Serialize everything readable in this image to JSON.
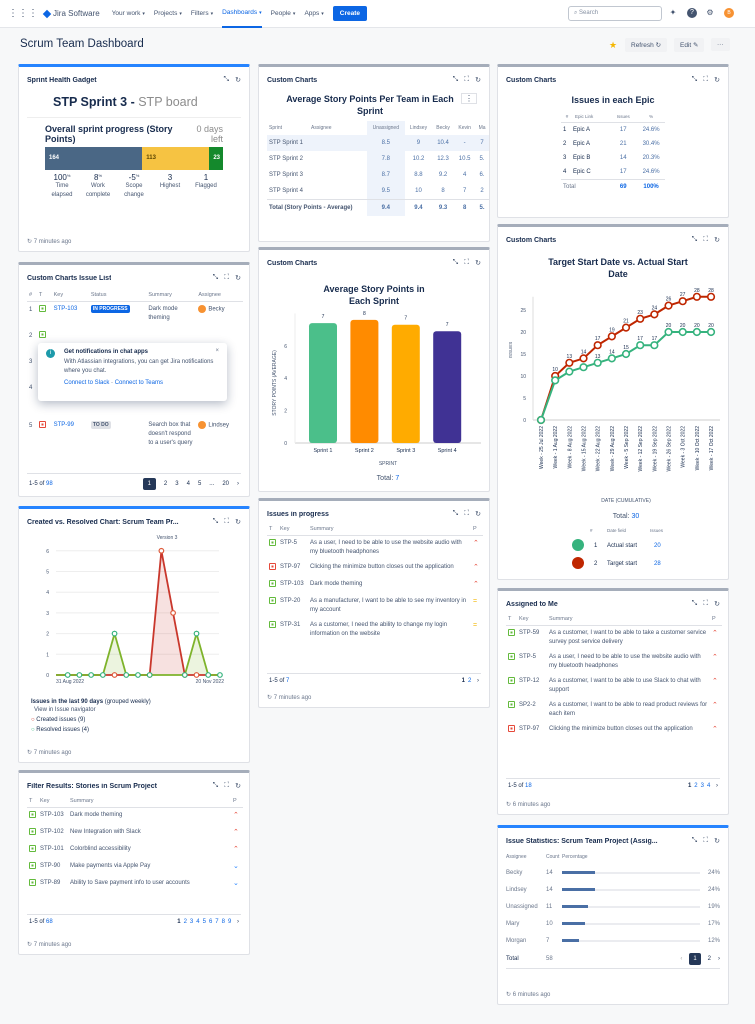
{
  "topbar": {
    "app_name": "Jira Software",
    "nav": [
      "Your work",
      "Projects",
      "Filters",
      "Dashboards",
      "People",
      "Apps"
    ],
    "active_nav": "Dashboards",
    "create_label": "Create",
    "search_placeholder": "Search"
  },
  "header": {
    "title": "Scrum Team Dashboard",
    "refresh_label": "Refresh",
    "edit_label": "Edit",
    "more_label": "···"
  },
  "colors": {
    "primary": "#0c66e4",
    "created": "#c9372c",
    "resolved": "#7eb32b",
    "actual": "#36b37e",
    "target": "#bf2600"
  },
  "sprint_health": {
    "title": "Sprint Health Gadget",
    "sprint": "STP Sprint 3 -",
    "board": "STP board",
    "progress_title": "Overall sprint progress (Story Points)",
    "days_left": "0 days left",
    "segments": [
      {
        "value": 164,
        "color": "#4a6785"
      },
      {
        "value": 113,
        "color": "#f6c342"
      },
      {
        "value": 23,
        "color": "#14892c"
      }
    ],
    "stats": [
      {
        "value": "100",
        "unit": "%",
        "label": "Time elapsed"
      },
      {
        "value": "8",
        "unit": "%",
        "label": "Work complete"
      },
      {
        "value": "-5",
        "unit": "%",
        "label": "Scope change"
      },
      {
        "value": "3",
        "unit": "",
        "label": "Highest"
      },
      {
        "value": "1",
        "unit": "",
        "label": "Flagged"
      }
    ],
    "updated": "7 minutes ago"
  },
  "issue_list": {
    "title": "Custom Charts Issue List",
    "columns": [
      "#",
      "T",
      "Key",
      "Status",
      "Summary",
      "Assignee"
    ],
    "rows": [
      {
        "n": "1",
        "key": "STP-103",
        "status": "IN PROGRESS",
        "summary": "Dark mode theming",
        "assignee": "Becky"
      },
      {
        "n": "2",
        "key": "",
        "status": "",
        "summary": "",
        "assignee": ""
      },
      {
        "n": "3",
        "key": "",
        "status": "",
        "summary": "",
        "assignee": ""
      },
      {
        "n": "4",
        "key": "",
        "status": "",
        "summary": "page does not load",
        "assignee": ""
      },
      {
        "n": "5",
        "key": "STP-99",
        "status": "TO DO",
        "summary": "Search box that doesn't respond to a user's query",
        "assignee": "Lindsey"
      }
    ],
    "range": "1-5 of",
    "total": "98",
    "pages": [
      "1",
      "2",
      "3",
      "4",
      "5",
      "...",
      "20"
    ],
    "popup": {
      "title": "Get notifications in chat apps",
      "body": "With Atlassian integrations, you can get Jira notifications where you chat.",
      "link1": "Connect to Slack",
      "sep": "·",
      "link2": "Connect to Teams"
    }
  },
  "created_resolved": {
    "title": "Created vs. Resolved Chart: Scrum Team Pr...",
    "updated": "7 minutes ago",
    "summary_bold": "Issues in the last 90 days",
    "summary_rest": "(grouped weekly)",
    "view_link": "View in Issue navigator",
    "legend_created": "Created issues (9)",
    "legend_resolved": "Resolved issues (4)"
  },
  "filter_results": {
    "title": "Filter Results: Stories in Scrum Project",
    "columns": [
      "T",
      "Key",
      "Summary",
      "P"
    ],
    "rows": [
      {
        "key": "STP-103",
        "summary": "Dark mode theming",
        "p": "high"
      },
      {
        "key": "STP-102",
        "summary": "New Integration with Slack",
        "p": "high"
      },
      {
        "key": "STP-101",
        "summary": "Colorblind accessibility",
        "p": "high"
      },
      {
        "key": "STP-90",
        "summary": "Make payments via Apple Pay",
        "p": "low"
      },
      {
        "key": "STP-89",
        "summary": "Ability to Save payment info to user accounts",
        "p": "low"
      }
    ],
    "range": "1-5 of",
    "total": "68",
    "pages": [
      "1",
      "2",
      "3",
      "4",
      "5",
      "6",
      "7",
      "8",
      "9"
    ],
    "updated": "7 minutes ago"
  },
  "team_table": {
    "title": "Custom Charts",
    "chart_title": "Average Story Points Per Team in Each Sprint",
    "columns": [
      "Sprint",
      "Assignee",
      "Unassigned",
      "Lindsey",
      "Becky",
      "Kevin",
      "Ma"
    ],
    "rows": [
      {
        "label": "STP Sprint 1",
        "values": [
          "8.5",
          "9",
          "10.4",
          "-",
          "7"
        ]
      },
      {
        "label": "STP Sprint 2",
        "values": [
          "7.8",
          "10.2",
          "12.3",
          "10.5",
          "5."
        ]
      },
      {
        "label": "STP Sprint 3",
        "values": [
          "8.7",
          "8.8",
          "9.2",
          "4",
          "6."
        ]
      },
      {
        "label": "STP Sprint 4",
        "values": [
          "9.5",
          "10",
          "8",
          "7",
          "2"
        ]
      },
      {
        "label": "Total (Story Points - Average)",
        "values": [
          "9.4",
          "9.4",
          "9.3",
          "8",
          "5."
        ]
      }
    ]
  },
  "issues_progress": {
    "title": "Issues in progress",
    "columns": [
      "T",
      "Key",
      "Summary",
      "P"
    ],
    "rows": [
      {
        "key": "STP-5",
        "type": "story",
        "summary": "As a user, I need to be able to use the website audio with my bluetooth headphones",
        "p": "high"
      },
      {
        "key": "STP-97",
        "type": "bug",
        "summary": "Clicking the minimize button closes out the application",
        "p": "high"
      },
      {
        "key": "STP-103",
        "type": "story",
        "summary": "Dark mode theming",
        "p": "high"
      },
      {
        "key": "STP-20",
        "type": "story",
        "summary": "As a manufacturer, I want to be able to see my inventory in my account",
        "p": "med"
      },
      {
        "key": "STP-31",
        "type": "story",
        "summary": "As a customer, I need the ability to change my login information on the website",
        "p": "med"
      }
    ],
    "range": "1-5 of",
    "total": "7",
    "pages": [
      "1",
      "2"
    ],
    "updated": "7 minutes ago"
  },
  "epic_table": {
    "title": "Custom Charts",
    "chart_title": "Issues in each Epic",
    "columns": [
      "#",
      "Epic Link",
      "Issues",
      "%"
    ],
    "rows": [
      {
        "n": "1",
        "epic": "Epic A",
        "issues": "17",
        "pct": "24.6%"
      },
      {
        "n": "2",
        "epic": "Epic A",
        "issues": "21",
        "pct": "30.4%"
      },
      {
        "n": "3",
        "epic": "Epic B",
        "issues": "14",
        "pct": "20.3%"
      },
      {
        "n": "4",
        "epic": "Epic C",
        "issues": "17",
        "pct": "24.6%"
      }
    ],
    "total_label": "Total",
    "total_issues": "69",
    "total_pct": "100%"
  },
  "assigned": {
    "title": "Assigned to Me",
    "columns": [
      "T",
      "Key",
      "Summary",
      "P"
    ],
    "rows": [
      {
        "key": "STP-59",
        "type": "story",
        "summary": "As a customer, I want to be able to take a customer service survey post service delivery",
        "p": "high"
      },
      {
        "key": "STP-5",
        "type": "story",
        "summary": "As a user, I need to be able to use the website audio with my bluetooth headphones",
        "p": "high"
      },
      {
        "key": "STP-12",
        "type": "story",
        "summary": "As a customer, I want to be able to use Slack to chat with support",
        "p": "high"
      },
      {
        "key": "SP2-2",
        "type": "story",
        "summary": "As a customer, I want to be able to read product reviews for each item",
        "p": "high"
      },
      {
        "key": "STP-97",
        "type": "bug",
        "summary": "Clicking the minimize button closes out the application",
        "p": "high"
      }
    ],
    "range": "1-5 of",
    "total": "18",
    "pages": [
      "1",
      "2",
      "3",
      "4"
    ],
    "updated": "6 minutes ago"
  },
  "statistics": {
    "title": "Issue Statistics: Scrum Team Project (Assig...",
    "columns": [
      "Assignee",
      "Count",
      "Percentage"
    ],
    "rows": [
      {
        "name": "Becky",
        "count": "14",
        "pct": "24%",
        "value": 24
      },
      {
        "name": "Lindsey",
        "count": "14",
        "pct": "24%",
        "value": 24
      },
      {
        "name": "Unassigned",
        "count": "11",
        "pct": "19%",
        "value": 19
      },
      {
        "name": "Mary",
        "count": "10",
        "pct": "17%",
        "value": 17
      },
      {
        "name": "Morgan",
        "count": "7",
        "pct": "12%",
        "value": 12
      }
    ],
    "total_label": "Total",
    "total": "58",
    "pages": [
      "1",
      "2"
    ],
    "updated": "6 minutes ago"
  },
  "chart_data": [
    {
      "type": "bar",
      "title": "Average Story Points in Each Sprint",
      "gadget_title": "Custom Charts",
      "categories": [
        "Sprint 1",
        "Sprint 2",
        "Sprint 3",
        "Sprint 4"
      ],
      "values": [
        7.4,
        7.6,
        7.3,
        6.9
      ],
      "data_labels": [
        "7",
        "8",
        "7",
        "7"
      ],
      "colors": [
        "#4bbf8a",
        "#ff8b00",
        "#ffab00",
        "#403294"
      ],
      "xlabel": "SPRINT",
      "ylabel": "STORY POINTS (AVERAGE)",
      "yticks": [
        0,
        2,
        4,
        6
      ],
      "ylim": [
        0,
        8
      ],
      "total_label": "Total:",
      "total": "7"
    },
    {
      "type": "line",
      "title": "Target Start Date vs. Actual Start Date",
      "gadget_title": "Custom Charts",
      "x": [
        "Week - 25 Jul 2022",
        "Week - 1 Aug 2022",
        "Week - 8 Aug 2022",
        "Week - 15 Aug 2022",
        "Week - 22 Aug 2022",
        "Week - 29 Aug 2022",
        "Week - 5 Sep 2022",
        "Week - 12 Sep 2022",
        "Week - 19 Sep 2022",
        "Week - 26 Sep 2022",
        "Week - 3 Oct 2022",
        "Week - 10 Oct 2022",
        "Week - 17 Oct 2022"
      ],
      "series": [
        {
          "name": "Actual start",
          "values": [
            0,
            9,
            11,
            12,
            13,
            14,
            15,
            17,
            17,
            20,
            20,
            20,
            20
          ],
          "color": "#36b37e",
          "count": "20"
        },
        {
          "name": "Target start",
          "values": [
            0,
            10,
            13,
            14,
            17,
            19,
            21,
            23,
            24,
            26,
            27,
            28,
            28
          ],
          "color": "#bf2600",
          "count": "28"
        }
      ],
      "xlabel": "DATE (CUMULATIVE)",
      "ylabel": "ISSUES",
      "yticks": [
        0,
        5,
        10,
        15,
        20,
        25
      ],
      "ylim": [
        0,
        29
      ],
      "total_label": "Total:",
      "total": "30",
      "legend_columns": [
        "#",
        "Date field",
        "Issues"
      ]
    },
    {
      "type": "line",
      "title": "Created vs. Resolved",
      "annotation": "Version 3",
      "x_start": "31 Aug 2022",
      "x_end": "20 Nov 2022",
      "series": [
        {
          "name": "Created issues",
          "values": [
            0,
            0,
            0,
            0,
            0,
            0,
            0,
            0,
            0,
            6,
            3,
            0,
            0,
            0,
            0
          ],
          "color": "#c9372c"
        },
        {
          "name": "Resolved issues",
          "values": [
            0,
            0,
            0,
            0,
            0,
            2,
            0,
            0,
            0,
            0,
            0,
            0,
            2,
            0,
            0
          ],
          "color": "#7eb32b"
        }
      ],
      "yticks": [
        0,
        1,
        2,
        3,
        4,
        5,
        6
      ],
      "ylim": [
        0,
        6
      ]
    }
  ]
}
